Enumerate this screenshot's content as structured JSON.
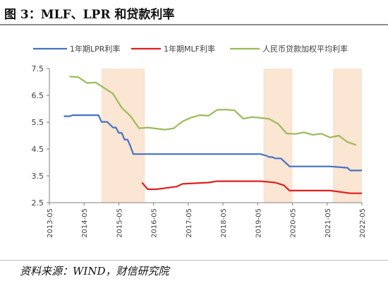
{
  "figure": {
    "title": "图 3：MLF、LPR 和贷款利率",
    "source": "资料来源：WIND，财信研究院"
  },
  "colors": {
    "lpr": "#4472c4",
    "mlf": "#e02020",
    "loan": "#9bbb59",
    "shade": "#fbe5d3",
    "axis": "#7f7f7f",
    "text": "#404040"
  },
  "chart_data": {
    "type": "line",
    "title": "",
    "xlabel": "",
    "ylabel": "",
    "xlim": [
      "2013-05",
      "2022-05"
    ],
    "ylim": [
      2.5,
      7.5
    ],
    "grid": false,
    "legend_position": "top",
    "x_ticks": [
      "2013-05",
      "2014-05",
      "2015-05",
      "2016-05",
      "2017-05",
      "2018-05",
      "2019-05",
      "2020-05",
      "2021-05",
      "2022-05"
    ],
    "y_ticks": [
      "2.5",
      "3.5",
      "4.5",
      "5.5",
      "6.5",
      "7.5"
    ],
    "shaded_periods": [
      [
        "2014-11",
        "2016-02"
      ],
      [
        "2019-07",
        "2020-05"
      ],
      [
        "2021-07",
        "2022-05"
      ]
    ],
    "series": [
      {
        "name": "1年期LPR利率",
        "x": [
          "2013-10",
          "2013-12",
          "2014-01",
          "2014-03",
          "2014-06",
          "2014-10",
          "2014-11",
          "2015-01",
          "2015-03",
          "2015-04",
          "2015-05",
          "2015-06",
          "2015-07",
          "2015-08",
          "2015-09",
          "2015-10",
          "2016-06",
          "2017-06",
          "2018-06",
          "2019-06",
          "2019-08",
          "2019-09",
          "2019-10",
          "2019-11",
          "2020-01",
          "2020-02",
          "2020-04",
          "2021-06",
          "2021-12",
          "2022-01",
          "2022-05"
        ],
        "values": [
          5.72,
          5.72,
          5.76,
          5.76,
          5.76,
          5.76,
          5.51,
          5.51,
          5.3,
          5.3,
          5.1,
          5.1,
          4.85,
          4.85,
          4.6,
          4.31,
          4.31,
          4.31,
          4.31,
          4.31,
          4.25,
          4.2,
          4.2,
          4.15,
          4.15,
          4.05,
          3.85,
          3.85,
          3.8,
          3.7,
          3.7
        ]
      },
      {
        "name": "1年期MLF利率",
        "x": [
          "2016-01",
          "2016-03",
          "2016-06",
          "2017-01",
          "2017-03",
          "2017-12",
          "2018-03",
          "2019-06",
          "2019-11",
          "2020-02",
          "2020-04",
          "2021-06",
          "2022-01",
          "2022-05"
        ],
        "values": [
          3.25,
          3.0,
          3.0,
          3.1,
          3.2,
          3.25,
          3.3,
          3.3,
          3.25,
          3.15,
          2.95,
          2.95,
          2.85,
          2.85
        ]
      },
      {
        "name": "人民币贷款加权平均利率",
        "x": [
          "2013-12",
          "2014-03",
          "2014-06",
          "2014-09",
          "2014-12",
          "2015-03",
          "2015-06",
          "2015-09",
          "2015-12",
          "2016-03",
          "2016-06",
          "2016-09",
          "2016-12",
          "2017-03",
          "2017-06",
          "2017-09",
          "2017-12",
          "2018-03",
          "2018-06",
          "2018-09",
          "2018-12",
          "2019-03",
          "2019-06",
          "2019-09",
          "2019-12",
          "2020-03",
          "2020-06",
          "2020-09",
          "2020-12",
          "2021-03",
          "2021-06",
          "2021-09",
          "2021-12",
          "2022-03"
        ],
        "values": [
          7.2,
          7.18,
          6.96,
          6.98,
          6.77,
          6.56,
          6.04,
          5.73,
          5.27,
          5.3,
          5.26,
          5.22,
          5.27,
          5.53,
          5.67,
          5.76,
          5.74,
          5.96,
          5.97,
          5.94,
          5.63,
          5.69,
          5.66,
          5.62,
          5.44,
          5.08,
          5.06,
          5.12,
          5.03,
          5.07,
          4.93,
          5.0,
          4.76,
          4.65
        ]
      }
    ]
  }
}
